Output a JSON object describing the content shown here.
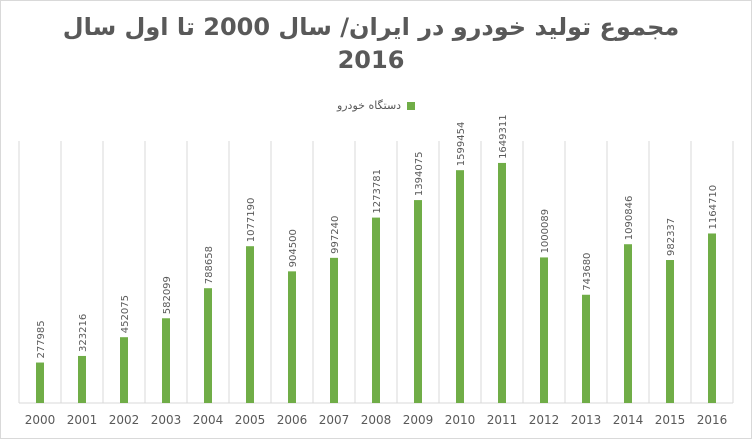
{
  "chart_data": {
    "type": "bar",
    "title": "مجموع تولید خودرو در ایران/ سال 2000 تا اول سال 2016",
    "legend": {
      "placement": "top",
      "entries": [
        "دستگاه خودرو"
      ]
    },
    "categories": [
      "2000",
      "2001",
      "2002",
      "2003",
      "2004",
      "2005",
      "2006",
      "2007",
      "2008",
      "2009",
      "2010",
      "2011",
      "2012",
      "2013",
      "2014",
      "2015",
      "2016"
    ],
    "series": [
      {
        "name": "دستگاه خودرو",
        "color": "#70ad47",
        "values": [
          277985,
          323216,
          452075,
          582099,
          788658,
          1077190,
          904500,
          997240,
          1273781,
          1394075,
          1599454,
          1649311,
          1000089,
          743680,
          1090846,
          982337,
          1164710
        ]
      }
    ],
    "ylim": [
      0,
      1800000
    ],
    "grid": "vertical",
    "data_labels": true,
    "xlabel": "",
    "ylabel": ""
  }
}
